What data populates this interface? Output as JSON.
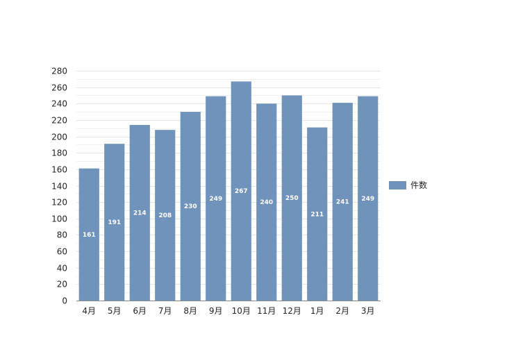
{
  "chart_data": {
    "type": "bar",
    "categories": [
      "4月",
      "5月",
      "6月",
      "7月",
      "8月",
      "9月",
      "10月",
      "11月",
      "12月",
      "1月",
      "2月",
      "3月"
    ],
    "series": [
      {
        "name": "件数",
        "values": [
          161,
          191,
          214,
          208,
          230,
          249,
          267,
          240,
          250,
          211,
          241,
          249
        ]
      }
    ],
    "ylim": [
      0,
      280
    ],
    "yticks": [
      0,
      20,
      40,
      60,
      80,
      100,
      120,
      140,
      160,
      180,
      200,
      220,
      240,
      260,
      280
    ],
    "grid": true,
    "legend": "right",
    "data_labels": true,
    "colors": {
      "bar": "#7093bb",
      "grid_major": "#e6e6e6",
      "grid_minor": "#f1f1f1",
      "axis": "#888888"
    }
  }
}
